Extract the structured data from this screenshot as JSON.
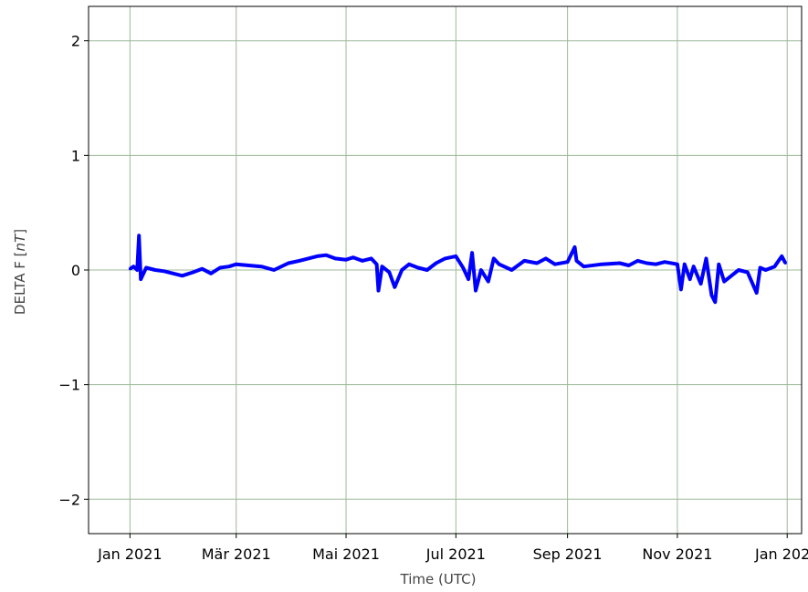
{
  "chart_data": {
    "type": "line",
    "title": "",
    "xlabel": "Time (UTC)",
    "ylabel_prefix": "DELTA F [",
    "ylabel_unit": "nT",
    "ylabel_suffix": "]",
    "xlim": [
      "2020-12-09",
      "2022-01-09"
    ],
    "ylim": [
      -2.3,
      2.3
    ],
    "x_ticks": [
      {
        "date": "2021-01-01",
        "label": "Jan 2021"
      },
      {
        "date": "2021-03-01",
        "label": "Mär 2021"
      },
      {
        "date": "2021-05-01",
        "label": "Mai 2021"
      },
      {
        "date": "2021-07-01",
        "label": "Jul 2021"
      },
      {
        "date": "2021-09-01",
        "label": "Sep 2021"
      },
      {
        "date": "2021-11-01",
        "label": "Nov 2021"
      },
      {
        "date": "2022-01-01",
        "label": "Jan 2022"
      }
    ],
    "y_ticks": [
      {
        "value": 2,
        "label": "2"
      },
      {
        "value": 1,
        "label": "1"
      },
      {
        "value": 0,
        "label": "0"
      },
      {
        "value": -1,
        "label": "−1"
      },
      {
        "value": -2,
        "label": "−2"
      }
    ],
    "grid": true,
    "grid_color": "#9db89a",
    "series": [
      {
        "color": "#0000ff",
        "points": [
          [
            "2021-01-01",
            0.01
          ],
          [
            "2021-01-03",
            0.03
          ],
          [
            "2021-01-05",
            0.0
          ],
          [
            "2021-01-06",
            0.3
          ],
          [
            "2021-01-07",
            -0.08
          ],
          [
            "2021-01-10",
            0.02
          ],
          [
            "2021-01-15",
            0.0
          ],
          [
            "2021-01-20",
            -0.01
          ],
          [
            "2021-01-25",
            -0.03
          ],
          [
            "2021-01-30",
            -0.05
          ],
          [
            "2021-02-05",
            -0.02
          ],
          [
            "2021-02-10",
            0.01
          ],
          [
            "2021-02-15",
            -0.03
          ],
          [
            "2021-02-20",
            0.02
          ],
          [
            "2021-02-25",
            0.03
          ],
          [
            "2021-03-01",
            0.05
          ],
          [
            "2021-03-08",
            0.04
          ],
          [
            "2021-03-15",
            0.03
          ],
          [
            "2021-03-22",
            0.0
          ],
          [
            "2021-03-30",
            0.06
          ],
          [
            "2021-04-05",
            0.08
          ],
          [
            "2021-04-10",
            0.1
          ],
          [
            "2021-04-15",
            0.12
          ],
          [
            "2021-04-20",
            0.13
          ],
          [
            "2021-04-25",
            0.1
          ],
          [
            "2021-05-01",
            0.09
          ],
          [
            "2021-05-05",
            0.11
          ],
          [
            "2021-05-10",
            0.08
          ],
          [
            "2021-05-15",
            0.1
          ],
          [
            "2021-05-18",
            0.05
          ],
          [
            "2021-05-19",
            -0.18
          ],
          [
            "2021-05-21",
            0.03
          ],
          [
            "2021-05-25",
            -0.02
          ],
          [
            "2021-05-28",
            -0.15
          ],
          [
            "2021-06-01",
            0.0
          ],
          [
            "2021-06-05",
            0.05
          ],
          [
            "2021-06-10",
            0.02
          ],
          [
            "2021-06-15",
            0.0
          ],
          [
            "2021-06-20",
            0.06
          ],
          [
            "2021-06-25",
            0.1
          ],
          [
            "2021-07-01",
            0.12
          ],
          [
            "2021-07-05",
            0.02
          ],
          [
            "2021-07-08",
            -0.08
          ],
          [
            "2021-07-10",
            0.15
          ],
          [
            "2021-07-12",
            -0.18
          ],
          [
            "2021-07-15",
            0.0
          ],
          [
            "2021-07-19",
            -0.1
          ],
          [
            "2021-07-22",
            0.1
          ],
          [
            "2021-07-25",
            0.05
          ],
          [
            "2021-08-01",
            0.0
          ],
          [
            "2021-08-08",
            0.08
          ],
          [
            "2021-08-15",
            0.06
          ],
          [
            "2021-08-20",
            0.1
          ],
          [
            "2021-08-25",
            0.05
          ],
          [
            "2021-09-01",
            0.07
          ],
          [
            "2021-09-05",
            0.2
          ],
          [
            "2021-09-06",
            0.08
          ],
          [
            "2021-09-10",
            0.03
          ],
          [
            "2021-09-20",
            0.05
          ],
          [
            "2021-09-30",
            0.06
          ],
          [
            "2021-10-05",
            0.04
          ],
          [
            "2021-10-10",
            0.08
          ],
          [
            "2021-10-15",
            0.06
          ],
          [
            "2021-10-20",
            0.05
          ],
          [
            "2021-10-25",
            0.07
          ],
          [
            "2021-11-01",
            0.05
          ],
          [
            "2021-11-03",
            -0.17
          ],
          [
            "2021-11-05",
            0.05
          ],
          [
            "2021-11-08",
            -0.08
          ],
          [
            "2021-11-10",
            0.03
          ],
          [
            "2021-11-14",
            -0.12
          ],
          [
            "2021-11-17",
            0.1
          ],
          [
            "2021-11-20",
            -0.22
          ],
          [
            "2021-11-22",
            -0.28
          ],
          [
            "2021-11-24",
            0.05
          ],
          [
            "2021-11-27",
            -0.1
          ],
          [
            "2021-12-01",
            -0.05
          ],
          [
            "2021-12-05",
            0.0
          ],
          [
            "2021-12-10",
            -0.02
          ],
          [
            "2021-12-15",
            -0.2
          ],
          [
            "2021-12-17",
            0.02
          ],
          [
            "2021-12-20",
            0.0
          ],
          [
            "2021-12-25",
            0.03
          ],
          [
            "2021-12-29",
            0.12
          ],
          [
            "2021-12-31",
            0.06
          ]
        ]
      }
    ]
  }
}
